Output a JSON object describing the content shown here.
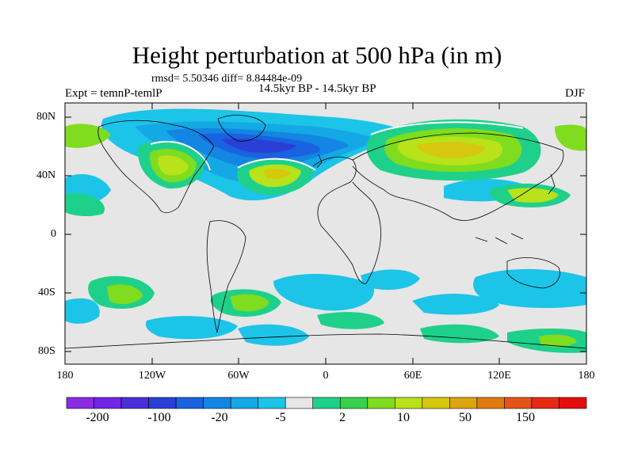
{
  "title": "Height perturbation at 500 hPa (in m)",
  "stats": "rmsd= 5.50346 diff= 8.84484e-09",
  "experiment": "Expt = temnP-temlP",
  "subtitle": "14.5kyr BP - 14.5kyr BP",
  "season": "DJF",
  "y_ticks": [
    "80N",
    "40N",
    "0",
    "40S",
    "80S"
  ],
  "x_ticks": [
    "180",
    "120W",
    "60W",
    "0",
    "60E",
    "120E",
    "180"
  ],
  "colorbar": {
    "labels": [
      "-200",
      "-100",
      "-20",
      "-5",
      "2",
      "10",
      "50",
      "150"
    ],
    "colors": [
      "#8b2be2",
      "#7026e6",
      "#4a2fd8",
      "#2a3fd6",
      "#1a62e0",
      "#1385e2",
      "#14a8e4",
      "#1cc4e8",
      "#e6e6e6",
      "#1fd08a",
      "#36d24a",
      "#7fdc1e",
      "#b8e21a",
      "#d6c70f",
      "#dca50f",
      "#e07a10",
      "#e4541a",
      "#e62a14",
      "#e60d0d"
    ]
  },
  "map_colors": {
    "background": "#e6e6e6",
    "coast": "#000000"
  }
}
